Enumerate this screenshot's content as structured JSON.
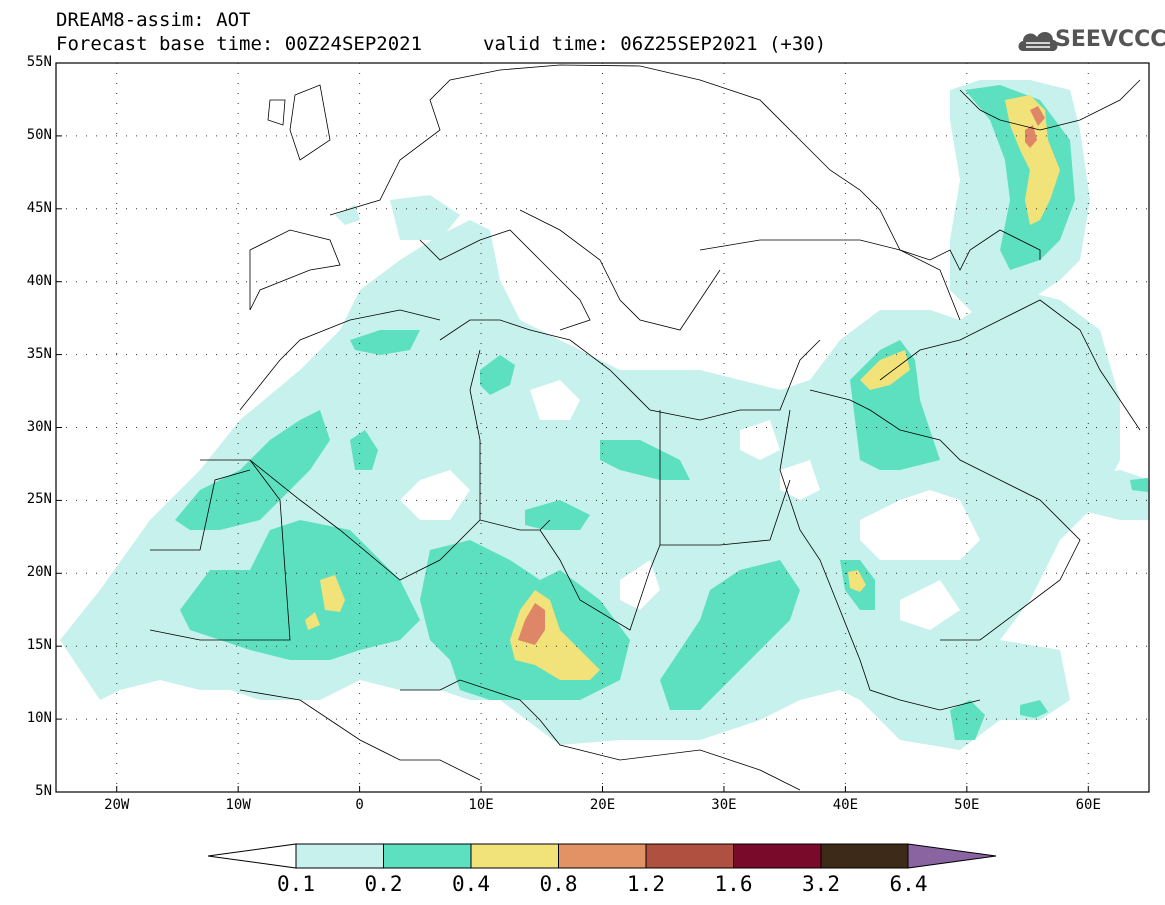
{
  "header": {
    "title": "DREAM8-assim: AOT",
    "base_time": "Forecast base time: 00Z24SEP2021",
    "valid_time": "valid time: 06Z25SEP2021 (+30)"
  },
  "logo": {
    "text": "SEEVCCC",
    "icon": "cloud-icon"
  },
  "map": {
    "lon_range": [
      -25,
      65
    ],
    "lat_range": [
      5,
      55
    ],
    "lat_labels": [
      "55N",
      "50N",
      "45N",
      "40N",
      "35N",
      "30N",
      "25N",
      "20N",
      "15N",
      "10N",
      "5N"
    ],
    "lat_values": [
      55,
      50,
      45,
      40,
      35,
      30,
      25,
      20,
      15,
      10,
      5
    ],
    "lon_labels": [
      "20W",
      "10W",
      "0",
      "10E",
      "20E",
      "30E",
      "40E",
      "50E",
      "60E"
    ],
    "lon_values": [
      -20,
      -10,
      0,
      10,
      20,
      30,
      40,
      50,
      60
    ]
  },
  "colorbar": {
    "labels": [
      "0.1",
      "0.2",
      "0.4",
      "0.8",
      "1.2",
      "1.6",
      "3.2",
      "6.4"
    ],
    "colors": [
      "#ffffff",
      "#c6f1ec",
      "#5ce0c0",
      "#f2e27a",
      "#e39265",
      "#b05040",
      "#7a0a2a",
      "#3e2a18",
      "#8a64a0"
    ]
  },
  "field_colors": {
    "c1": "#c6f1ec",
    "c2": "#5ce0c0",
    "c3": "#f2e27a",
    "c4": "#e08668"
  }
}
